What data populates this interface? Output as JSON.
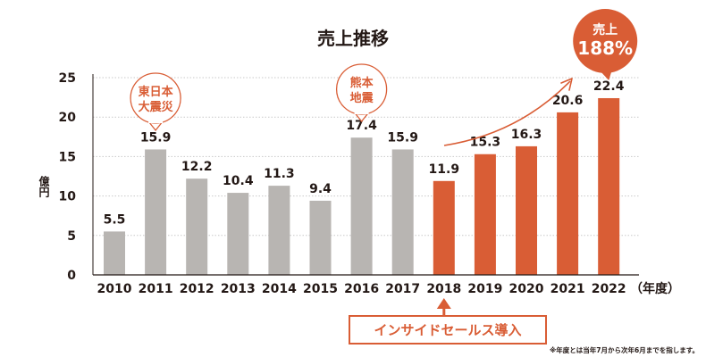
{
  "colors": {
    "gray_bar": "#b8b5b2",
    "orange_bar": "#d95d35",
    "axis": "#231815",
    "grid": "#c9c9c9",
    "callout_text": "#d95d35",
    "callout_bg": "#ffffff",
    "badge_text": "#ffffff"
  },
  "chart_data": {
    "type": "bar",
    "title": "売上推移",
    "xlabel": "",
    "ylabel": "億円",
    "x_unit_label": "（年度）",
    "ylim": [
      0,
      25
    ],
    "yticks": [
      "0",
      "5",
      "10",
      "15",
      "20",
      "25"
    ],
    "categories": [
      "2010",
      "2011",
      "2012",
      "2013",
      "2014",
      "2015",
      "2016",
      "2017",
      "2018",
      "2019",
      "2020",
      "2021",
      "2022"
    ],
    "values": [
      5.5,
      15.9,
      12.2,
      10.4,
      11.3,
      9.4,
      17.4,
      15.9,
      11.9,
      15.3,
      16.3,
      20.6,
      22.4
    ],
    "value_labels": [
      "5.5",
      "15.9",
      "12.2",
      "10.4",
      "11.3",
      "9.4",
      "17.4",
      "15.9",
      "11.9",
      "15.3",
      "16.3",
      "20.6",
      "22.4"
    ],
    "highlight_start_index": 8,
    "callouts": {
      "earthquake_2011": {
        "category": "2011",
        "line1": "東日本",
        "line2": "大震災"
      },
      "earthquake_2016": {
        "category": "2016",
        "line1": "熊本",
        "line2": "地震"
      }
    },
    "growth_badge": {
      "category": "2022",
      "line1": "売上",
      "line2": "188%"
    },
    "insidesales_label": "インサイドセールス導入",
    "insidesales_category": "2018",
    "footnote": "※年度とは当年7月から次年6月までを指します。"
  }
}
